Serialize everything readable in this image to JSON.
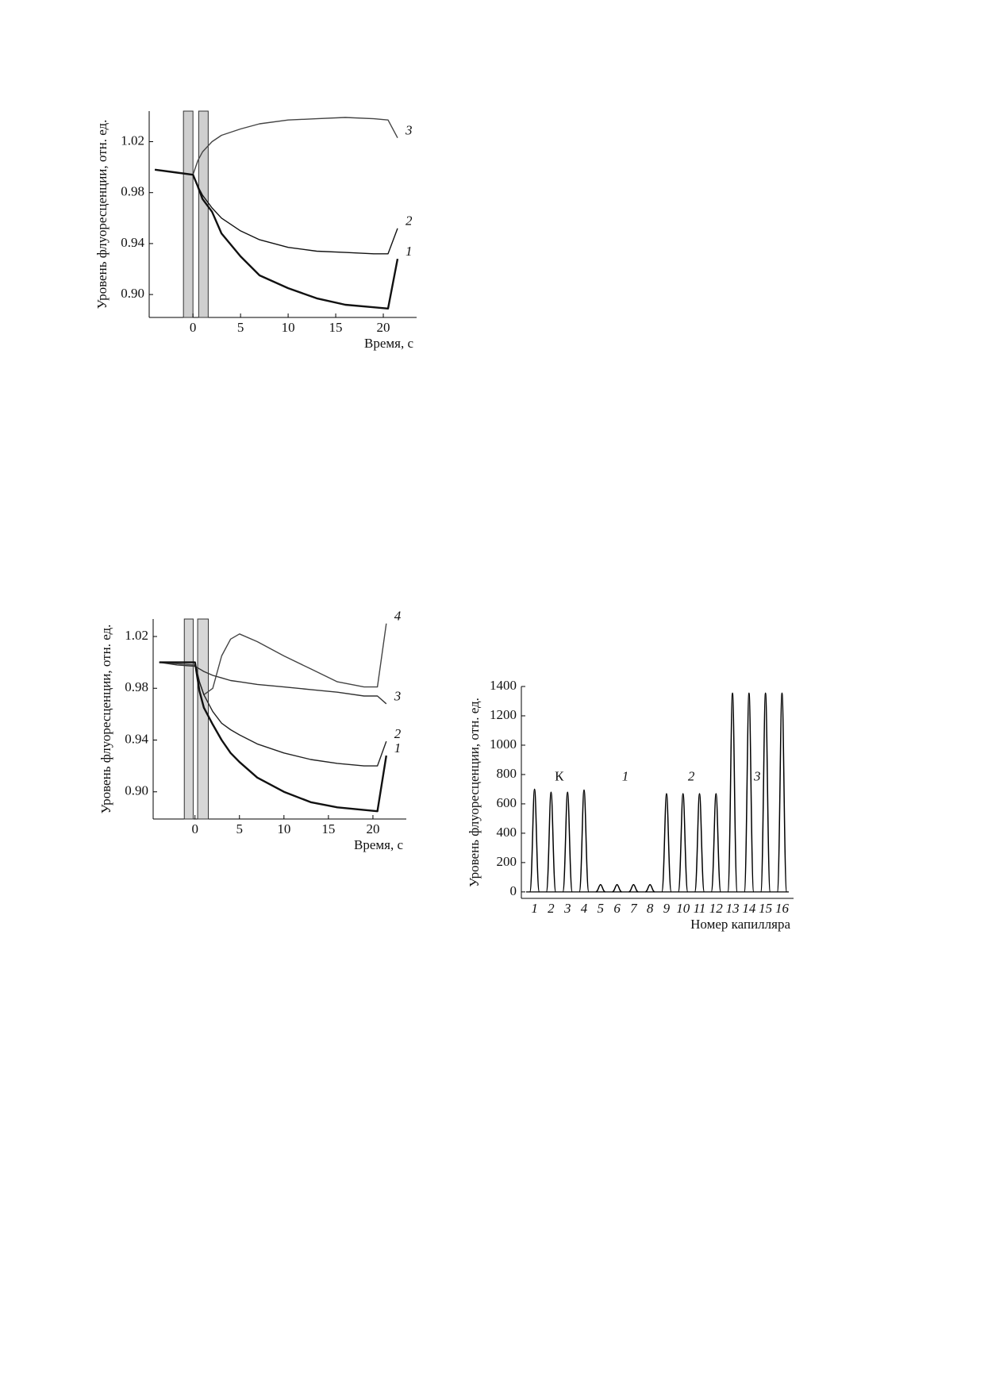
{
  "chart_data": [
    {
      "type": "line",
      "xlabel": "Время, с",
      "ylabel": "Уровень флуоресценции, отн. ед.",
      "x": [
        -4,
        -2,
        0,
        0.5,
        1,
        2,
        3,
        5,
        7,
        10,
        13,
        16,
        19,
        20.5,
        21.5
      ],
      "series": [
        {
          "name": "3",
          "color": "#444444",
          "values": [
            0.998,
            0.996,
            0.994,
            1.005,
            1.012,
            1.02,
            1.025,
            1.03,
            1.034,
            1.037,
            1.038,
            1.039,
            1.038,
            1.037,
            1.023
          ]
        },
        {
          "name": "2",
          "color": "#111111",
          "values": [
            0.998,
            0.996,
            0.994,
            0.985,
            0.978,
            0.968,
            0.96,
            0.95,
            0.943,
            0.937,
            0.934,
            0.933,
            0.932,
            0.932,
            0.952
          ]
        },
        {
          "name": "1",
          "color": "#111111",
          "values": [
            0.998,
            0.996,
            0.994,
            0.985,
            0.975,
            0.965,
            0.948,
            0.93,
            0.915,
            0.905,
            0.897,
            0.892,
            0.89,
            0.889,
            0.928
          ]
        }
      ],
      "xlim": [
        -4.6,
        23.5
      ],
      "ylim": [
        0.882,
        1.044
      ],
      "xticks": [
        0,
        5,
        10,
        15,
        20
      ],
      "yticks": [
        {
          "value": 0.9,
          "label": "0.90"
        },
        0.94,
        0.98,
        1.02
      ],
      "shaded_regions": [
        [
          -1,
          0
        ],
        [
          0.6,
          1.6
        ]
      ],
      "shade_color": "#cfcfcf"
    },
    {
      "type": "line",
      "xlabel": "Время, с",
      "ylabel": "Уровень флуоресценции, отн. ед.",
      "x": [
        -4,
        -2,
        0,
        0.5,
        1,
        2,
        3,
        4,
        5,
        7,
        10,
        13,
        16,
        19,
        20.5,
        21.5
      ],
      "series": [
        {
          "name": "4",
          "color": "#444444",
          "values": [
            1.0,
            0.999,
            0.998,
            0.985,
            0.975,
            0.98,
            1.005,
            1.018,
            1.022,
            1.016,
            1.005,
            0.995,
            0.985,
            0.981,
            0.981,
            1.03
          ]
        },
        {
          "name": "3",
          "color": "#333333",
          "values": [
            1.0,
            0.998,
            0.997,
            0.995,
            0.993,
            0.99,
            0.988,
            0.986,
            0.985,
            0.983,
            0.981,
            0.979,
            0.977,
            0.974,
            0.974,
            0.968
          ]
        },
        {
          "name": "2",
          "color": "#222222",
          "values": [
            1.0,
            1.0,
            1.0,
            0.985,
            0.975,
            0.962,
            0.953,
            0.948,
            0.944,
            0.937,
            0.93,
            0.925,
            0.922,
            0.92,
            0.92,
            0.939
          ]
        },
        {
          "name": "1",
          "color": "#111111",
          "values": [
            1.0,
            1.0,
            1.0,
            0.978,
            0.965,
            0.952,
            0.94,
            0.93,
            0.923,
            0.911,
            0.9,
            0.892,
            0.888,
            0.886,
            0.885,
            0.928
          ]
        }
      ],
      "xlim": [
        -4.7,
        23.75
      ],
      "ylim": [
        0.879,
        1.0335
      ],
      "xticks": [
        0,
        5,
        10,
        15,
        20
      ],
      "yticks": [
        {
          "value": 0.9,
          "label": "0.90"
        },
        0.94,
        0.98,
        1.02
      ],
      "shaded_regions": [
        [
          -1.2,
          -0.2
        ],
        [
          0.3,
          1.5
        ]
      ],
      "shade_color": "#d6d6d6"
    },
    {
      "type": "peaks",
      "xlabel": "Номер капилляра",
      "ylabel": "Уровень флуоресценции, отн. ед.",
      "categories": [
        "1",
        "2",
        "3",
        "4",
        "5",
        "6",
        "7",
        "8",
        "9",
        "10",
        "11",
        "12",
        "13",
        "14",
        "15",
        "16"
      ],
      "values": [
        700,
        680,
        680,
        695,
        50,
        50,
        50,
        50,
        670,
        670,
        670,
        670,
        1355,
        1355,
        1355,
        1355
      ],
      "color": "#000000",
      "ylim": [
        -44,
        1400
      ],
      "yticks": [
        0,
        200,
        400,
        600,
        800,
        1000,
        1200,
        1400
      ],
      "annotations": [
        "К",
        "1",
        "2",
        "3"
      ]
    }
  ]
}
